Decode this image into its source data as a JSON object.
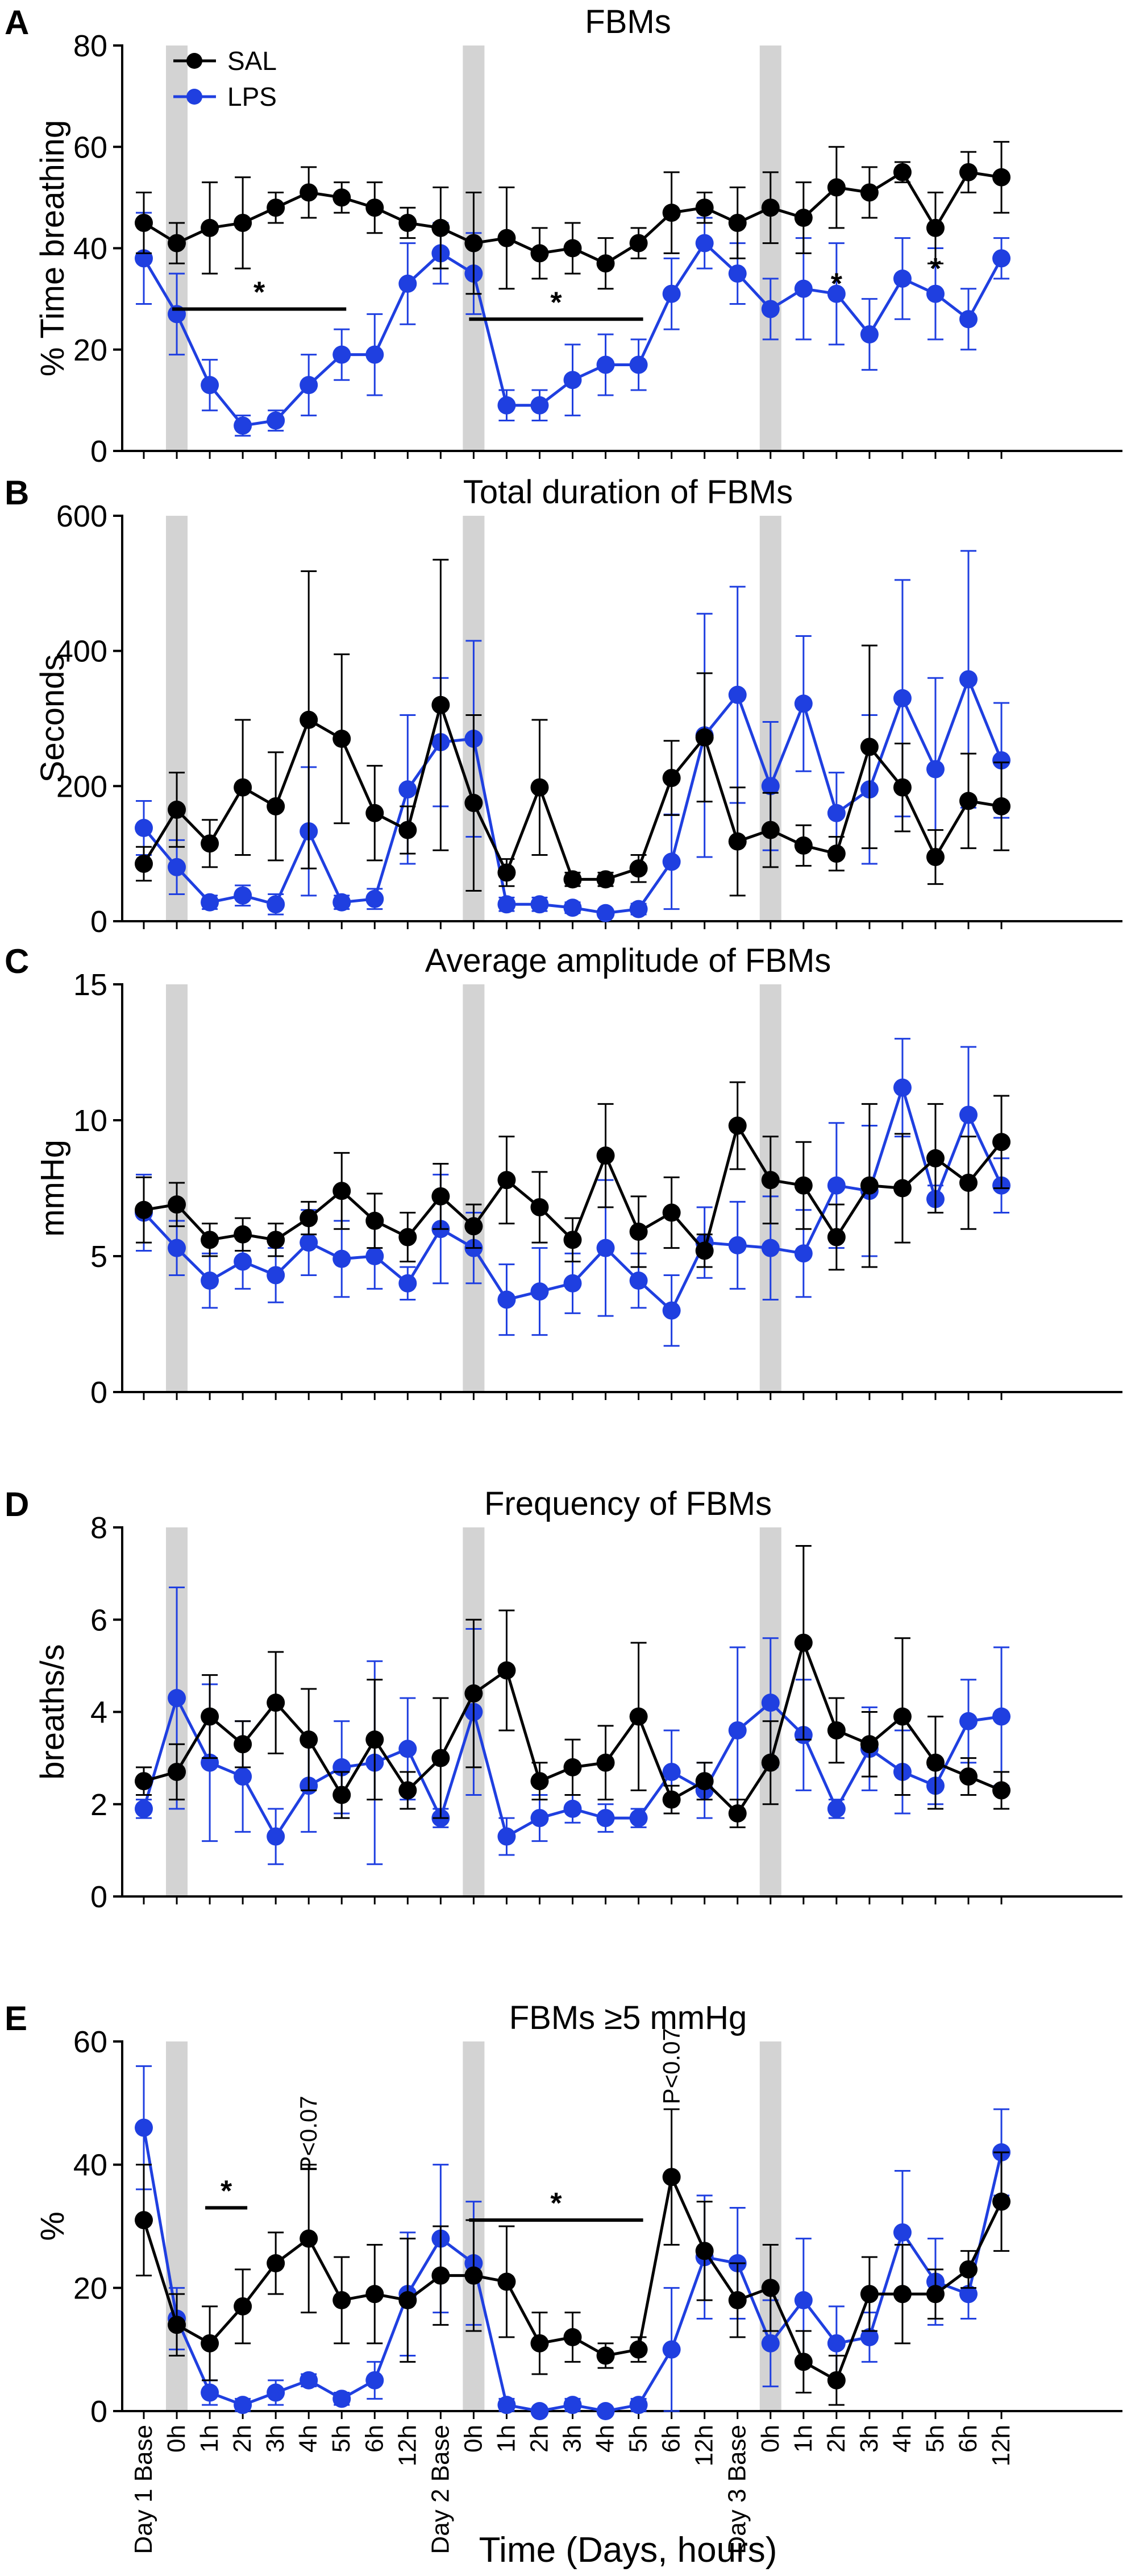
{
  "x_categories": [
    "Day 1 Base",
    "0h",
    "1h",
    "2h",
    "3h",
    "4h",
    "5h",
    "6h",
    "12h",
    "Day 2 Base",
    "0h",
    "1h",
    "2h",
    "3h",
    "4h",
    "5h",
    "6h",
    "12h",
    "Day 3 Base",
    "0h",
    "1h",
    "2h",
    "3h",
    "4h",
    "5h",
    "6h",
    "12h"
  ],
  "xlabel": "Time (Days, hours)",
  "legend": [
    {
      "name": "SAL",
      "color": "#000000"
    },
    {
      "name": "LPS",
      "color": "#1f3fe0"
    }
  ],
  "chart_data": [
    {
      "type": "line",
      "label": "A",
      "title": "FBMs",
      "ylabel": "% Time breathing",
      "ylim": [
        0,
        80
      ],
      "yticks": [
        0,
        20,
        40,
        60,
        80
      ],
      "series": [
        {
          "name": "SAL",
          "values": [
            45,
            41,
            44,
            45,
            48,
            51,
            50,
            48,
            45,
            44,
            41,
            42,
            39,
            40,
            37,
            41,
            47,
            48,
            45,
            48,
            46,
            52,
            51,
            55,
            44,
            55,
            54
          ],
          "err": [
            6,
            4,
            9,
            9,
            3,
            5,
            3,
            5,
            3,
            8,
            10,
            10,
            5,
            5,
            5,
            3,
            8,
            3,
            7,
            7,
            7,
            8,
            5,
            2,
            7,
            4,
            7
          ]
        },
        {
          "name": "LPS",
          "values": [
            38,
            27,
            13,
            5,
            6,
            13,
            19,
            19,
            33,
            39,
            35,
            9,
            9,
            14,
            17,
            17,
            31,
            41,
            35,
            28,
            32,
            31,
            23,
            34,
            31,
            26,
            38
          ],
          "err": [
            9,
            8,
            5,
            2,
            2,
            6,
            5,
            8,
            8,
            6,
            8,
            3,
            3,
            7,
            6,
            5,
            7,
            5,
            6,
            6,
            10,
            10,
            7,
            8,
            9,
            6,
            4
          ]
        }
      ],
      "annotations": [
        {
          "type": "bar",
          "from": 1,
          "to": 6,
          "y": 28,
          "label": "*"
        },
        {
          "type": "bar",
          "from": 10,
          "to": 15,
          "y": 26,
          "label": "*"
        },
        {
          "type": "star",
          "x": 21,
          "y": 31,
          "label": "*"
        },
        {
          "type": "star",
          "x": 24,
          "y": 34,
          "label": "*"
        }
      ]
    },
    {
      "type": "line",
      "label": "B",
      "title": "Total duration of FBMs",
      "ylabel": "Seconds",
      "ylim": [
        0,
        600
      ],
      "yticks": [
        0,
        200,
        400,
        600
      ],
      "series": [
        {
          "name": "SAL",
          "values": [
            85,
            165,
            115,
            198,
            170,
            298,
            270,
            160,
            135,
            320,
            175,
            72,
            198,
            62,
            62,
            78,
            212,
            272,
            118,
            135,
            112,
            100,
            258,
            198,
            95,
            178,
            170
          ],
          "err": [
            25,
            55,
            35,
            100,
            80,
            220,
            125,
            70,
            35,
            215,
            130,
            20,
            100,
            10,
            10,
            20,
            55,
            95,
            80,
            55,
            30,
            25,
            150,
            65,
            40,
            70,
            65
          ]
        },
        {
          "name": "LPS",
          "values": [
            138,
            80,
            28,
            38,
            25,
            133,
            28,
            33,
            195,
            265,
            270,
            25,
            25,
            20,
            12,
            18,
            88,
            275,
            335,
            200,
            322,
            160,
            195,
            330,
            225,
            358,
            238
          ],
          "err": [
            40,
            40,
            10,
            15,
            15,
            95,
            10,
            15,
            110,
            95,
            145,
            10,
            10,
            8,
            5,
            8,
            70,
            180,
            160,
            95,
            100,
            60,
            110,
            175,
            135,
            190,
            85
          ]
        }
      ],
      "annotations": []
    },
    {
      "type": "line",
      "label": "C",
      "title": "Average amplitude of FBMs",
      "ylabel": "mmHg",
      "ylim": [
        0,
        15
      ],
      "yticks": [
        0,
        5,
        10,
        15
      ],
      "series": [
        {
          "name": "SAL",
          "values": [
            6.7,
            6.9,
            5.6,
            5.8,
            5.6,
            6.4,
            7.4,
            6.3,
            5.7,
            7.2,
            6.1,
            7.8,
            6.8,
            5.6,
            8.7,
            5.9,
            6.6,
            5.2,
            9.8,
            7.8,
            7.6,
            5.7,
            7.6,
            7.5,
            8.6,
            7.7,
            9.2
          ],
          "err": [
            1.2,
            0.8,
            0.6,
            0.6,
            0.6,
            0.6,
            1.4,
            1.0,
            0.9,
            1.2,
            0.8,
            1.6,
            1.3,
            0.8,
            1.9,
            1.3,
            1.3,
            0.6,
            1.6,
            1.6,
            1.6,
            1.2,
            3.0,
            2.0,
            2.0,
            1.7,
            1.7
          ]
        },
        {
          "name": "LPS",
          "values": [
            6.6,
            5.3,
            4.1,
            4.8,
            4.3,
            5.5,
            4.9,
            5.0,
            4.0,
            6.0,
            5.3,
            3.4,
            3.7,
            4.0,
            5.3,
            4.1,
            3.0,
            5.5,
            5.4,
            5.3,
            5.1,
            7.6,
            7.4,
            11.2,
            7.1,
            10.2,
            7.6
          ],
          "err": [
            1.4,
            1.0,
            1.0,
            1.0,
            1.0,
            1.2,
            1.4,
            1.2,
            0.6,
            2.0,
            1.3,
            1.3,
            1.6,
            1.1,
            2.5,
            1.0,
            1.3,
            1.3,
            1.6,
            1.9,
            1.6,
            2.3,
            2.4,
            1.8,
            0.5,
            2.5,
            1.0
          ]
        }
      ],
      "annotations": []
    },
    {
      "type": "line",
      "label": "D",
      "title": "Frequency of FBMs",
      "ylabel": "breaths/s",
      "ylim": [
        0,
        8
      ],
      "yticks": [
        0,
        2,
        4,
        6,
        8
      ],
      "series": [
        {
          "name": "SAL",
          "values": [
            2.5,
            2.7,
            3.9,
            3.3,
            4.2,
            3.4,
            2.2,
            3.4,
            2.3,
            3.0,
            4.4,
            4.9,
            2.5,
            2.8,
            2.9,
            3.9,
            2.1,
            2.5,
            1.8,
            2.9,
            5.5,
            3.6,
            3.3,
            3.9,
            2.9,
            2.6,
            2.3
          ],
          "err": [
            0.3,
            0.6,
            0.9,
            0.5,
            1.1,
            1.1,
            0.5,
            1.3,
            0.4,
            1.3,
            1.6,
            1.3,
            0.4,
            0.6,
            0.8,
            1.6,
            0.3,
            0.4,
            0.3,
            0.9,
            2.1,
            0.7,
            0.7,
            1.7,
            1.0,
            0.4,
            0.4
          ]
        },
        {
          "name": "LPS",
          "values": [
            1.9,
            4.3,
            2.9,
            2.6,
            1.3,
            2.4,
            2.8,
            2.9,
            3.2,
            1.7,
            4.0,
            1.3,
            1.7,
            1.9,
            1.7,
            1.7,
            2.7,
            2.3,
            3.6,
            4.2,
            3.5,
            1.9,
            3.2,
            2.7,
            2.4,
            3.8,
            3.9
          ],
          "err": [
            0.2,
            2.4,
            1.7,
            1.2,
            0.6,
            1.0,
            1.0,
            2.2,
            1.1,
            0.2,
            1.8,
            0.4,
            0.5,
            0.3,
            0.3,
            0.2,
            0.9,
            0.6,
            1.8,
            1.4,
            1.2,
            0.2,
            0.9,
            0.9,
            0.4,
            0.9,
            1.5
          ]
        }
      ],
      "annotations": []
    },
    {
      "type": "line",
      "label": "E",
      "title": "FBMs ≥5 mmHg",
      "ylabel": "%",
      "ylim": [
        0,
        60
      ],
      "yticks": [
        0,
        20,
        40,
        60
      ],
      "series": [
        {
          "name": "SAL",
          "values": [
            31,
            14,
            11,
            17,
            24,
            28,
            18,
            19,
            18,
            22,
            22,
            21,
            11,
            12,
            9,
            10,
            38,
            26,
            18,
            20,
            8,
            5,
            19,
            19,
            19,
            23,
            34
          ],
          "err": [
            9,
            5,
            6,
            6,
            5,
            12,
            7,
            8,
            10,
            8,
            9,
            9,
            5,
            4,
            2,
            2,
            11,
            8,
            6,
            7,
            5,
            4,
            6,
            8,
            4,
            3,
            8
          ]
        },
        {
          "name": "LPS",
          "values": [
            46,
            15,
            3,
            1,
            3,
            5,
            2,
            5,
            19,
            28,
            24,
            1,
            0,
            1,
            0,
            1,
            10,
            25,
            24,
            11,
            18,
            11,
            12,
            29,
            21,
            19,
            42
          ],
          "err": [
            10,
            5,
            2,
            1,
            2,
            1,
            1,
            3,
            10,
            12,
            10,
            1,
            0,
            1,
            0,
            1,
            10,
            10,
            9,
            7,
            10,
            6,
            4,
            10,
            7,
            4,
            7
          ]
        }
      ],
      "annotations": [
        {
          "type": "bar",
          "from": 2,
          "to": 3,
          "y": 33,
          "label": "*"
        },
        {
          "type": "bar",
          "from": 10,
          "to": 15,
          "y": 31,
          "label": "*"
        },
        {
          "type": "text",
          "x": 5,
          "y": 45,
          "label": "P<0.07"
        },
        {
          "type": "text",
          "x": 16,
          "y": 56,
          "label": "P<0.07"
        }
      ]
    }
  ]
}
